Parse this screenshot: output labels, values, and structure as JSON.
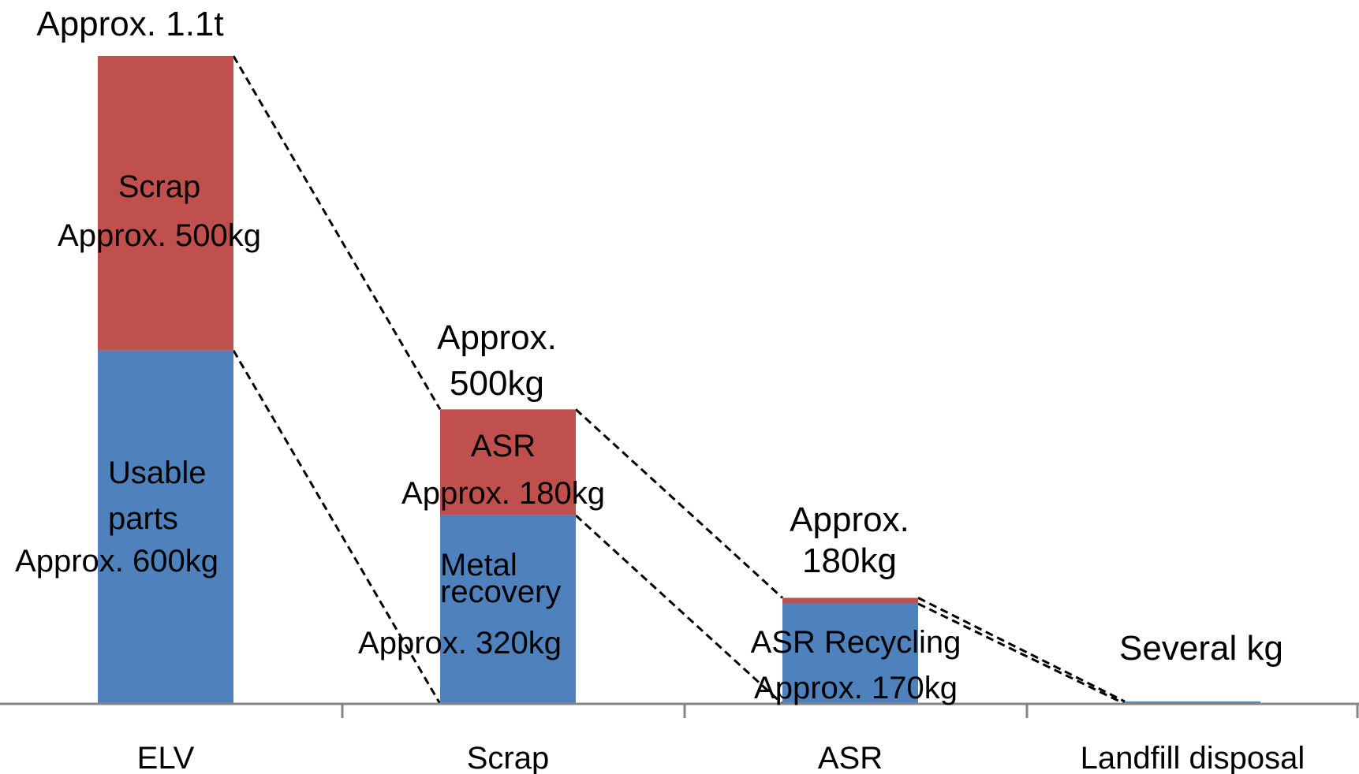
{
  "chart_data": {
    "type": "bar",
    "stacked": true,
    "title": "",
    "xlabel": "",
    "ylabel": "",
    "categories": [
      "ELV",
      "Scrap",
      "ASR",
      "Landfill disposal"
    ],
    "ylim": [
      0,
      1100
    ],
    "grid": false,
    "legend": "none",
    "series": [
      {
        "values": [
          600,
          320,
          170,
          4
        ],
        "color": "#4f81bd"
      },
      {
        "values": [
          500,
          180,
          10,
          0
        ],
        "color": "#c0504d"
      }
    ],
    "totals": [
      "Approx. 1.1t",
      "Approx.\n500kg",
      "Approx.\n180kg",
      "Several kg"
    ],
    "segment_labels": [
      [
        "Usable\nparts\nApprox. 600kg",
        "Scrap\nApprox. 500kg"
      ],
      [
        "Metal\nrecovery\n\nApprox. 320kg",
        "ASR\nApprox. 180kg"
      ],
      [
        "ASR Recycling\nApprox. 170kg",
        ""
      ],
      [
        "",
        ""
      ]
    ]
  }
}
